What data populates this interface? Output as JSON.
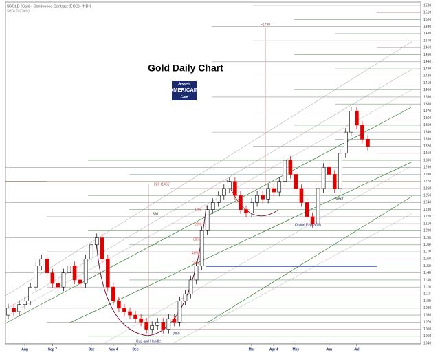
{
  "chart_data": {
    "type": "candlestick",
    "title": "Gold Daily Chart",
    "header": "$GOLD (Gold - Continuous Contract (EOD)) INDX",
    "subheader": "$GOLD (Daily)",
    "logo": [
      "Jesse's",
      "AMERICAIN",
      "Cafe"
    ],
    "annotations": [
      "~1490",
      "226 (1496)",
      "580",
      "10%",
      "20%",
      "30%",
      "40%",
      "50%",
      "Cup and Handle",
      "1050",
      "Option Expiration",
      "Brexit"
    ],
    "up_color": "#000000",
    "down_color": "#e00000",
    "ylim": [
      1040,
      1520
    ],
    "yticks": [
      1040,
      1050,
      1060,
      1070,
      1080,
      1090,
      1100,
      1110,
      1120,
      1130,
      1140,
      1150,
      1160,
      1170,
      1180,
      1190,
      1200,
      1210,
      1220,
      1230,
      1240,
      1250,
      1260,
      1270,
      1280,
      1290,
      1300,
      1310,
      1320,
      1330,
      1340,
      1350,
      1360,
      1370,
      1380,
      1390,
      1400,
      1410,
      1420,
      1430,
      1440,
      1450,
      1460,
      1470,
      1480,
      1490,
      1500,
      1510,
      1520
    ],
    "xlim": [
      0,
      65
    ],
    "xticks": [
      {
        "value": 3,
        "label": "Aug"
      },
      {
        "value": 8,
        "label": "Sep 7"
      },
      {
        "value": 15,
        "label": "Oct"
      },
      {
        "value": 19,
        "label": "Nov 4"
      },
      {
        "value": 23,
        "label": "Dec"
      },
      {
        "value": 44,
        "label": "Mar"
      },
      {
        "value": 48,
        "label": "Apr 4"
      },
      {
        "value": 52,
        "label": "May"
      },
      {
        "value": 58,
        "label": "Jun"
      },
      {
        "value": 63,
        "label": "Jul"
      }
    ],
    "open": [
      1080,
      1090,
      1085,
      1095,
      1100,
      1120,
      1150,
      1160,
      1140,
      1125,
      1120,
      1140,
      1150,
      1130,
      1125,
      1160,
      1180,
      1190,
      1160,
      1120,
      1100,
      1090,
      1085,
      1080,
      1075,
      1070,
      1060,
      1065,
      1070,
      1060,
      1075,
      1070,
      1100,
      1110,
      1130,
      1150,
      1200,
      1230,
      1240,
      1250,
      1260,
      1270,
      1250,
      1230,
      1225,
      1240,
      1250,
      1245,
      1260,
      1255,
      1270,
      1300,
      1280,
      1260,
      1240,
      1220,
      1210,
      1260,
      1290,
      1280,
      1260,
      1310,
      1340,
      1370,
      1350,
      1330
    ],
    "high": [
      1096,
      1096,
      1101,
      1106,
      1126,
      1156,
      1166,
      1166,
      1146,
      1131,
      1146,
      1156,
      1156,
      1136,
      1166,
      1186,
      1196,
      1196,
      1166,
      1126,
      1106,
      1096,
      1091,
      1086,
      1081,
      1076,
      1071,
      1076,
      1076,
      1081,
      1081,
      1106,
      1116,
      1136,
      1156,
      1206,
      1236,
      1246,
      1256,
      1266,
      1276,
      1276,
      1256,
      1236,
      1246,
      1256,
      1256,
      1266,
      1266,
      1276,
      1306,
      1306,
      1286,
      1266,
      1246,
      1226,
      1266,
      1296,
      1296,
      1286,
      1316,
      1346,
      1376,
      1376,
      1356,
      1336
    ],
    "low": [
      1074,
      1079,
      1079,
      1089,
      1094,
      1114,
      1144,
      1134,
      1119,
      1114,
      1114,
      1134,
      1124,
      1119,
      1119,
      1154,
      1174,
      1154,
      1114,
      1094,
      1084,
      1079,
      1074,
      1069,
      1064,
      1054,
      1054,
      1059,
      1054,
      1054,
      1064,
      1064,
      1094,
      1104,
      1124,
      1144,
      1194,
      1224,
      1234,
      1244,
      1254,
      1244,
      1224,
      1219,
      1219,
      1234,
      1239,
      1239,
      1249,
      1249,
      1264,
      1274,
      1254,
      1234,
      1214,
      1204,
      1204,
      1254,
      1274,
      1254,
      1254,
      1304,
      1334,
      1344,
      1324,
      1314
    ],
    "close": [
      1090,
      1085,
      1095,
      1100,
      1120,
      1150,
      1160,
      1140,
      1125,
      1120,
      1140,
      1150,
      1130,
      1125,
      1160,
      1180,
      1190,
      1160,
      1120,
      1100,
      1090,
      1085,
      1080,
      1075,
      1070,
      1060,
      1065,
      1070,
      1060,
      1075,
      1070,
      1100,
      1110,
      1130,
      1150,
      1200,
      1230,
      1240,
      1250,
      1260,
      1270,
      1250,
      1230,
      1225,
      1240,
      1250,
      1245,
      1260,
      1255,
      1270,
      1300,
      1280,
      1260,
      1240,
      1220,
      1210,
      1260,
      1290,
      1280,
      1260,
      1310,
      1340,
      1370,
      1350,
      1330,
      1320
    ]
  }
}
